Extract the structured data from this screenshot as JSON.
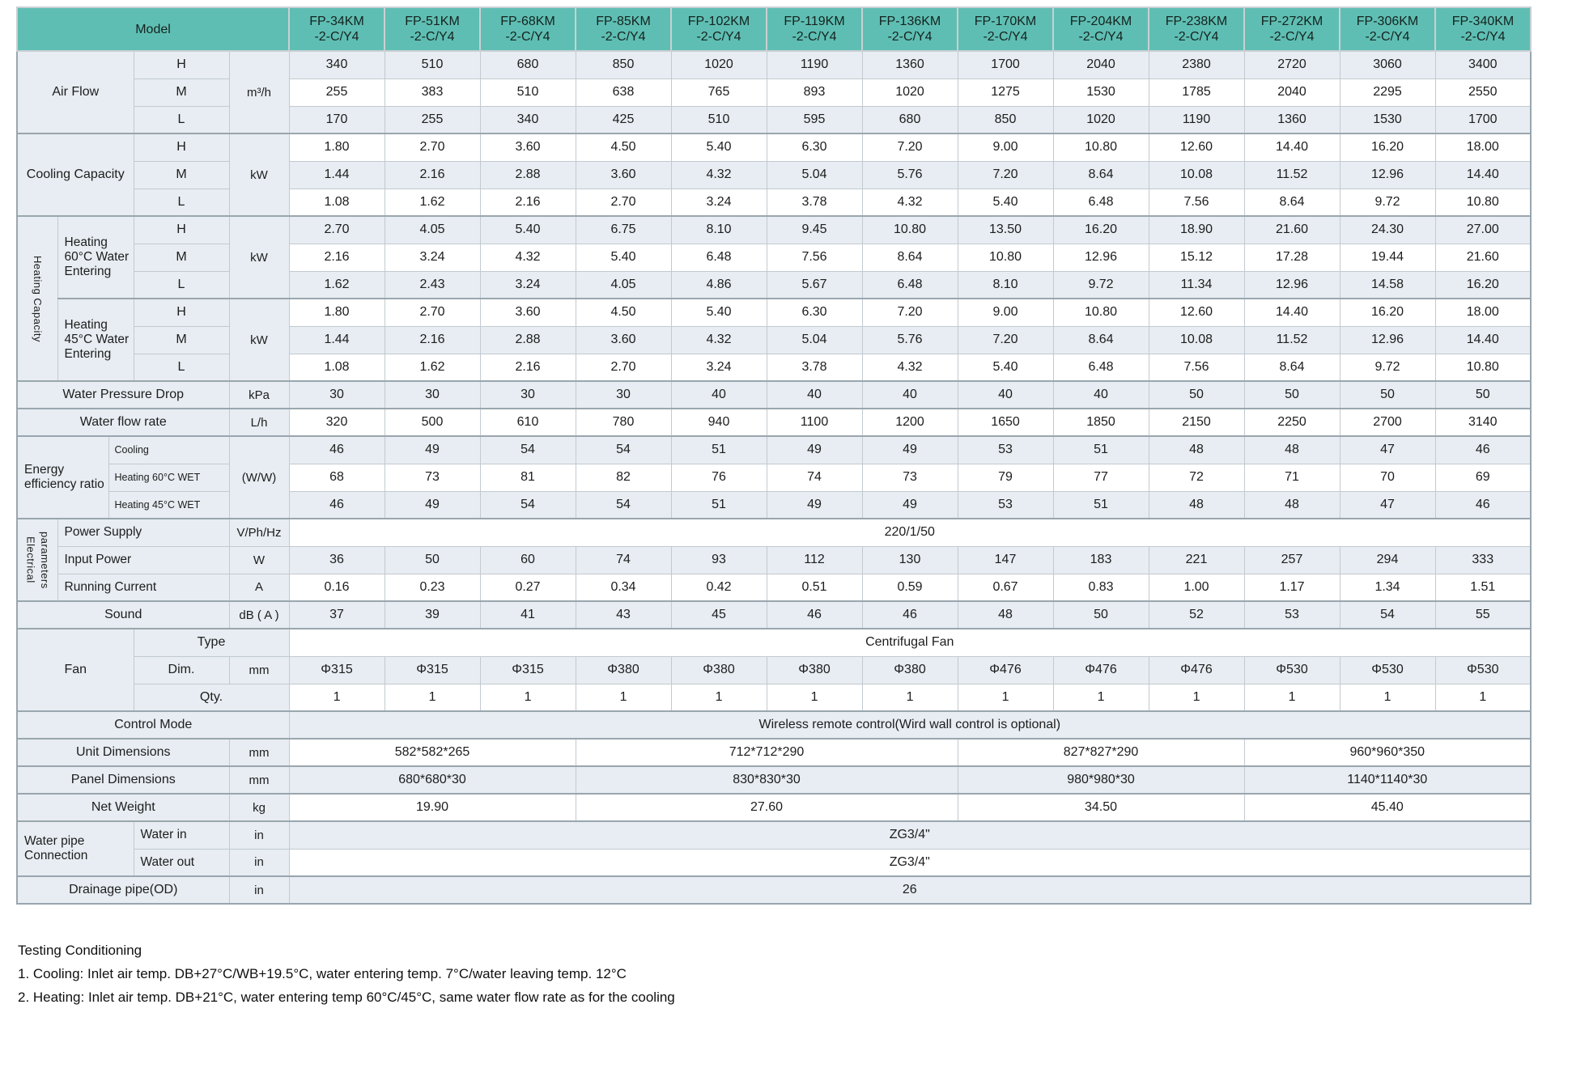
{
  "colors": {
    "header_teal": "#5fbeb3",
    "row_shade": "#e7edf2",
    "line": "#c2cad0",
    "line_strong": "#9aa6ae",
    "text": "#1d1d1d"
  },
  "header": {
    "model_label": "Model",
    "models": [
      {
        "name": "FP-34KM",
        "suffix": "-2-C/Y4"
      },
      {
        "name": "FP-51KM",
        "suffix": "-2-C/Y4"
      },
      {
        "name": "FP-68KM",
        "suffix": "-2-C/Y4"
      },
      {
        "name": "FP-85KM",
        "suffix": "-2-C/Y4"
      },
      {
        "name": "FP-102KM",
        "suffix": "-2-C/Y4"
      },
      {
        "name": "FP-119KM",
        "suffix": "-2-C/Y4"
      },
      {
        "name": "FP-136KM",
        "suffix": "-2-C/Y4"
      },
      {
        "name": "FP-170KM",
        "suffix": "-2-C/Y4"
      },
      {
        "name": "FP-204KM",
        "suffix": "-2-C/Y4"
      },
      {
        "name": "FP-238KM",
        "suffix": "-2-C/Y4"
      },
      {
        "name": "FP-272KM",
        "suffix": "-2-C/Y4"
      },
      {
        "name": "FP-306KM",
        "suffix": "-2-C/Y4"
      },
      {
        "name": "FP-340KM",
        "suffix": "-2-C/Y4"
      }
    ]
  },
  "rows": [
    {
      "g": 1,
      "cells": [
        {
          "t": "Air Flow",
          "c": 3,
          "r": 3,
          "k": "lbl",
          "n": "row-label-air-flow"
        },
        {
          "t": "H",
          "k": "hml"
        },
        {
          "t": "m³/h",
          "r": 3,
          "k": "unit"
        },
        {
          "vals": [
            "340",
            "510",
            "680",
            "850",
            "1020",
            "1190",
            "1360",
            "1700",
            "2040",
            "2380",
            "2720",
            "3060",
            "3400"
          ]
        }
      ]
    },
    {
      "cells": [
        {
          "t": "M",
          "k": "hml"
        },
        {
          "vals": [
            "255",
            "383",
            "510",
            "638",
            "765",
            "893",
            "1020",
            "1275",
            "1530",
            "1785",
            "2040",
            "2295",
            "2550"
          ]
        }
      ]
    },
    {
      "cells": [
        {
          "t": "L",
          "k": "hml"
        },
        {
          "vals": [
            "170",
            "255",
            "340",
            "425",
            "510",
            "595",
            "680",
            "850",
            "1020",
            "1190",
            "1360",
            "1530",
            "1700"
          ]
        }
      ]
    },
    {
      "g": 1,
      "cells": [
        {
          "t": "Cooling Capacity",
          "c": 3,
          "r": 3,
          "k": "lbl",
          "n": "row-label-cooling-capacity"
        },
        {
          "t": "H",
          "k": "hml"
        },
        {
          "t": "kW",
          "r": 3,
          "k": "unit"
        },
        {
          "vals": [
            "1.80",
            "2.70",
            "3.60",
            "4.50",
            "5.40",
            "6.30",
            "7.20",
            "9.00",
            "10.80",
            "12.60",
            "14.40",
            "16.20",
            "18.00"
          ]
        }
      ]
    },
    {
      "cells": [
        {
          "t": "M",
          "k": "hml"
        },
        {
          "vals": [
            "1.44",
            "2.16",
            "2.88",
            "3.60",
            "4.32",
            "5.04",
            "5.76",
            "7.20",
            "8.64",
            "10.08",
            "11.52",
            "12.96",
            "14.40"
          ]
        }
      ]
    },
    {
      "cells": [
        {
          "t": "L",
          "k": "hml"
        },
        {
          "vals": [
            "1.08",
            "1.62",
            "2.16",
            "2.70",
            "3.24",
            "3.78",
            "4.32",
            "5.40",
            "6.48",
            "7.56",
            "8.64",
            "9.72",
            "10.80"
          ]
        }
      ]
    },
    {
      "g": 1,
      "cells": [
        {
          "t": "Heating Capacity",
          "r": 6,
          "k": "v",
          "n": "row-label-heating-capacity"
        },
        {
          "t": "Heating 60°C Water Entering",
          "c": 2,
          "r": 3,
          "k": "lbll"
        },
        {
          "t": "H",
          "k": "hml"
        },
        {
          "t": "kW",
          "r": 3,
          "k": "unit"
        },
        {
          "vals": [
            "2.70",
            "4.05",
            "5.40",
            "6.75",
            "8.10",
            "9.45",
            "10.80",
            "13.50",
            "16.20",
            "18.90",
            "21.60",
            "24.30",
            "27.00"
          ]
        }
      ]
    },
    {
      "cells": [
        {
          "t": "M",
          "k": "hml"
        },
        {
          "vals": [
            "2.16",
            "3.24",
            "4.32",
            "5.40",
            "6.48",
            "7.56",
            "8.64",
            "10.80",
            "12.96",
            "15.12",
            "17.28",
            "19.44",
            "21.60"
          ]
        }
      ]
    },
    {
      "cells": [
        {
          "t": "L",
          "k": "hml"
        },
        {
          "vals": [
            "1.62",
            "2.43",
            "3.24",
            "4.05",
            "4.86",
            "5.67",
            "6.48",
            "8.10",
            "9.72",
            "11.34",
            "12.96",
            "14.58",
            "16.20"
          ]
        }
      ]
    },
    {
      "g": 1,
      "cells": [
        {
          "t": "Heating 45°C Water Entering",
          "c": 2,
          "r": 3,
          "k": "lbll"
        },
        {
          "t": "H",
          "k": "hml"
        },
        {
          "t": "kW",
          "r": 3,
          "k": "unit"
        },
        {
          "vals": [
            "1.80",
            "2.70",
            "3.60",
            "4.50",
            "5.40",
            "6.30",
            "7.20",
            "9.00",
            "10.80",
            "12.60",
            "14.40",
            "16.20",
            "18.00"
          ]
        }
      ]
    },
    {
      "cells": [
        {
          "t": "M",
          "k": "hml"
        },
        {
          "vals": [
            "1.44",
            "2.16",
            "2.88",
            "3.60",
            "4.32",
            "5.04",
            "5.76",
            "7.20",
            "8.64",
            "10.08",
            "11.52",
            "12.96",
            "14.40"
          ]
        }
      ]
    },
    {
      "cells": [
        {
          "t": "L",
          "k": "hml"
        },
        {
          "vals": [
            "1.08",
            "1.62",
            "2.16",
            "2.70",
            "3.24",
            "3.78",
            "4.32",
            "5.40",
            "6.48",
            "7.56",
            "8.64",
            "9.72",
            "10.80"
          ]
        }
      ]
    },
    {
      "g": 1,
      "cells": [
        {
          "t": "Water Pressure Drop",
          "c": 4,
          "k": "lbl"
        },
        {
          "t": "kPa",
          "k": "unit"
        },
        {
          "vals": [
            "30",
            "30",
            "30",
            "30",
            "40",
            "40",
            "40",
            "40",
            "40",
            "50",
            "50",
            "50",
            "50"
          ]
        }
      ]
    },
    {
      "g": 1,
      "cells": [
        {
          "t": "Water flow rate",
          "c": 4,
          "k": "lbl"
        },
        {
          "t": "L/h",
          "k": "unit"
        },
        {
          "vals": [
            "320",
            "500",
            "610",
            "780",
            "940",
            "1100",
            "1200",
            "1650",
            "1850",
            "2150",
            "2250",
            "2700",
            "3140"
          ]
        }
      ]
    },
    {
      "g": 1,
      "cells": [
        {
          "t": "Energy efficiency ratio",
          "c": 2,
          "r": 3,
          "k": "lbll",
          "n": "row-label-eer"
        },
        {
          "t": "Cooling",
          "c": 2,
          "k": "sub"
        },
        {
          "t": "(W/W)",
          "r": 3,
          "k": "unit"
        },
        {
          "vals": [
            "46",
            "49",
            "54",
            "54",
            "51",
            "49",
            "49",
            "53",
            "51",
            "48",
            "48",
            "47",
            "46"
          ]
        }
      ]
    },
    {
      "cells": [
        {
          "t": "Heating 60°C WET",
          "c": 2,
          "k": "sub"
        },
        {
          "vals": [
            "68",
            "73",
            "81",
            "82",
            "76",
            "74",
            "73",
            "79",
            "77",
            "72",
            "71",
            "70",
            "69"
          ]
        }
      ]
    },
    {
      "cells": [
        {
          "t": "Heating 45°C WET",
          "c": 2,
          "k": "sub"
        },
        {
          "vals": [
            "46",
            "49",
            "54",
            "54",
            "51",
            "49",
            "49",
            "53",
            "51",
            "48",
            "48",
            "47",
            "46"
          ]
        }
      ]
    },
    {
      "g": 1,
      "cells": [
        {
          "t": "Electrical parameters",
          "r": 3,
          "k": "v",
          "n": "row-label-electrical-parameters"
        },
        {
          "t": "Power Supply",
          "c": 3,
          "k": "lbll"
        },
        {
          "t": "V/Ph/Hz",
          "k": "unit"
        },
        {
          "t": "220/1/50",
          "c": 13
        }
      ]
    },
    {
      "cells": [
        {
          "t": "Input Power",
          "c": 3,
          "k": "lbll"
        },
        {
          "t": "W",
          "k": "unit"
        },
        {
          "vals": [
            "36",
            "50",
            "60",
            "74",
            "93",
            "112",
            "130",
            "147",
            "183",
            "221",
            "257",
            "294",
            "333"
          ]
        }
      ]
    },
    {
      "cells": [
        {
          "t": "Running Current",
          "c": 3,
          "k": "lbll"
        },
        {
          "t": "A",
          "k": "unit"
        },
        {
          "vals": [
            "0.16",
            "0.23",
            "0.27",
            "0.34",
            "0.42",
            "0.51",
            "0.59",
            "0.67",
            "0.83",
            "1.00",
            "1.17",
            "1.34",
            "1.51"
          ]
        }
      ]
    },
    {
      "g": 1,
      "cells": [
        {
          "t": "Sound",
          "c": 4,
          "k": "lbl"
        },
        {
          "t": "dB ( A )",
          "k": "unit"
        },
        {
          "vals": [
            "37",
            "39",
            "41",
            "43",
            "45",
            "46",
            "46",
            "48",
            "50",
            "52",
            "53",
            "54",
            "55"
          ]
        }
      ]
    },
    {
      "g": 1,
      "cells": [
        {
          "t": "Fan",
          "c": 3,
          "r": 3,
          "k": "lbl",
          "n": "row-label-fan"
        },
        {
          "t": "Type",
          "c": 2,
          "k": "lbl"
        },
        {
          "t": "Centrifugal Fan",
          "c": 13
        }
      ]
    },
    {
      "cells": [
        {
          "t": "Dim.",
          "k": "lbl"
        },
        {
          "t": "mm",
          "k": "unit"
        },
        {
          "vals": [
            "Φ315",
            "Φ315",
            "Φ315",
            "Φ380",
            "Φ380",
            "Φ380",
            "Φ380",
            "Φ476",
            "Φ476",
            "Φ476",
            "Φ530",
            "Φ530",
            "Φ530"
          ]
        }
      ]
    },
    {
      "cells": [
        {
          "t": "Qty.",
          "c": 2,
          "k": "lbl"
        },
        {
          "vals": [
            "1",
            "1",
            "1",
            "1",
            "1",
            "1",
            "1",
            "1",
            "1",
            "1",
            "1",
            "1",
            "1"
          ]
        }
      ]
    },
    {
      "g": 1,
      "cells": [
        {
          "t": "Control Mode",
          "c": 5,
          "k": "lbl"
        },
        {
          "t": "Wireless remote control(Wird wall control is optional)",
          "c": 13
        }
      ]
    },
    {
      "g": 1,
      "cells": [
        {
          "t": "Unit Dimensions",
          "c": 4,
          "k": "lbl"
        },
        {
          "t": "mm",
          "k": "unit"
        },
        {
          "t": "582*582*265",
          "c": 3
        },
        {
          "t": "712*712*290",
          "c": 4
        },
        {
          "t": "827*827*290",
          "c": 3
        },
        {
          "t": "960*960*350",
          "c": 3
        }
      ]
    },
    {
      "g": 1,
      "cells": [
        {
          "t": "Panel Dimensions",
          "c": 4,
          "k": "lbl"
        },
        {
          "t": "mm",
          "k": "unit"
        },
        {
          "t": "680*680*30",
          "c": 3
        },
        {
          "t": "830*830*30",
          "c": 4
        },
        {
          "t": "980*980*30",
          "c": 3
        },
        {
          "t": "1140*1140*30",
          "c": 3
        }
      ]
    },
    {
      "g": 1,
      "cells": [
        {
          "t": "Net Weight",
          "c": 4,
          "k": "lbl"
        },
        {
          "t": "kg",
          "k": "unit"
        },
        {
          "t": "19.90",
          "c": 3
        },
        {
          "t": "27.60",
          "c": 4
        },
        {
          "t": "34.50",
          "c": 3
        },
        {
          "t": "45.40",
          "c": 3
        }
      ]
    },
    {
      "g": 1,
      "cells": [
        {
          "t": "Water pipe Connection",
          "c": 3,
          "r": 2,
          "k": "lbll",
          "n": "row-label-water-pipe-connection"
        },
        {
          "t": "Water in",
          "k": "lbll"
        },
        {
          "t": "in",
          "k": "unit"
        },
        {
          "t": "ZG3/4\"",
          "c": 13
        }
      ]
    },
    {
      "cells": [
        {
          "t": "Water out",
          "k": "lbll"
        },
        {
          "t": "in",
          "k": "unit"
        },
        {
          "t": "ZG3/4\"",
          "c": 13
        }
      ]
    },
    {
      "g": 1,
      "cells": [
        {
          "t": "Drainage pipe(OD)",
          "c": 4,
          "k": "lbl"
        },
        {
          "t": "in",
          "k": "unit"
        },
        {
          "t": "26",
          "c": 13
        }
      ]
    }
  ],
  "notes": {
    "title": "Testing Conditioning",
    "items": [
      "1. Cooling: Inlet air temp. DB+27°C/WB+19.5°C, water entering temp. 7°C/water leaving temp. 12°C",
      "2. Heating: Inlet air temp. DB+21°C, water entering temp 60°C/45°C, same water flow rate as for the cooling"
    ]
  }
}
